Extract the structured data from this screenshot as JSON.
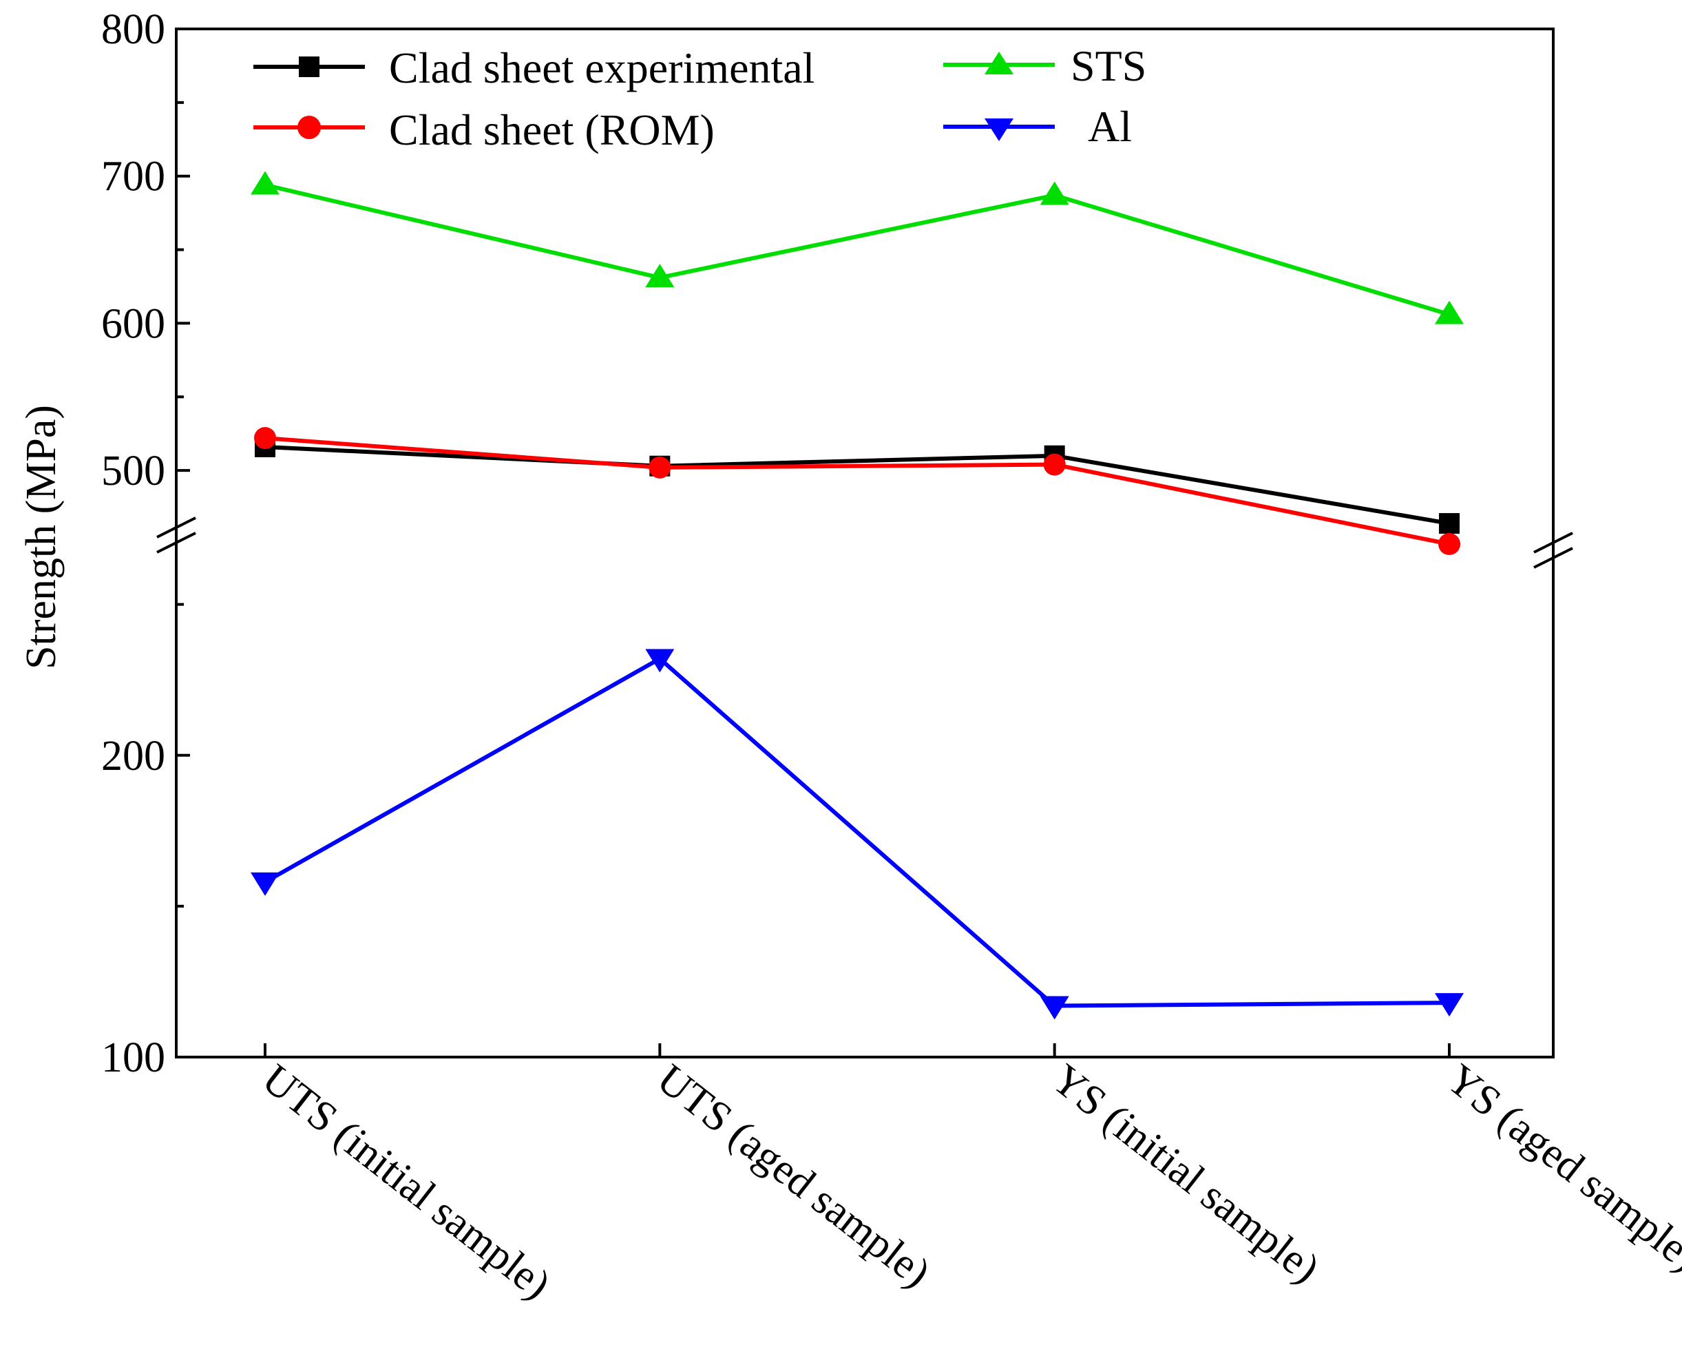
{
  "chart_data": {
    "type": "line",
    "title": "",
    "xlabel": "",
    "ylabel": "Strength (MPa)",
    "categories": [
      "UTS (initial sample)",
      "UTS (aged sample)",
      "YS (initial sample)",
      "YS (aged sample)"
    ],
    "axis_break": true,
    "upper_segment": {
      "ylim": [
        450,
        800
      ],
      "ticks": [
        500,
        600,
        700,
        800
      ]
    },
    "lower_segment": {
      "ylim": [
        100,
        270
      ],
      "ticks": [
        100,
        200
      ]
    },
    "grid": false,
    "legend_position": "top",
    "series": [
      {
        "name": "Clad sheet experimental",
        "color": "#000000",
        "marker": "square",
        "segment": "upper",
        "values": [
          516,
          503,
          510,
          464
        ]
      },
      {
        "name": "Clad sheet (ROM)",
        "color": "#ff0000",
        "marker": "circle",
        "segment": "upper",
        "values": [
          522,
          502,
          504,
          450
        ]
      },
      {
        "name": "STS",
        "color": "#00dd00",
        "marker": "triangle-up",
        "segment": "upper",
        "values": [
          694,
          631,
          687,
          606
        ]
      },
      {
        "name": "Al",
        "color": "#0000ff",
        "marker": "triangle-down",
        "segment": "lower",
        "values": [
          158,
          232,
          117,
          118
        ]
      }
    ]
  }
}
